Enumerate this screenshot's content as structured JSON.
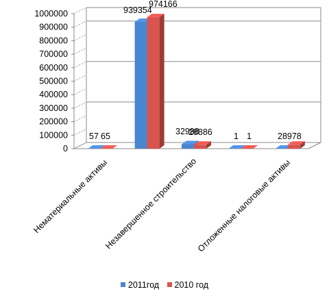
{
  "chart_data": {
    "type": "bar",
    "categories": [
      "Нематериальные активы",
      "",
      "Незавершенное строительство",
      "",
      "Отложенные налоговые активы"
    ],
    "series": [
      {
        "name": "2011год",
        "color": "#4a86d0",
        "values": [
          57,
          939354,
          32998,
          1,
          0
        ]
      },
      {
        "name": "2010 год",
        "color": "#d9534f",
        "values": [
          65,
          974166,
          28886,
          1,
          28978
        ]
      }
    ],
    "data_labels": [
      [
        "57",
        "939354",
        "32998",
        "1",
        ""
      ],
      [
        "65",
        "974166",
        "28886",
        "1",
        "28978"
      ]
    ],
    "ylim": [
      0,
      1000000
    ],
    "yticks": [
      "0",
      "100000",
      "200000",
      "300000",
      "400000",
      "500000",
      "600000",
      "700000",
      "800000",
      "900000",
      "1000000"
    ],
    "grid": true,
    "three_d": true,
    "legend": "bottom"
  }
}
